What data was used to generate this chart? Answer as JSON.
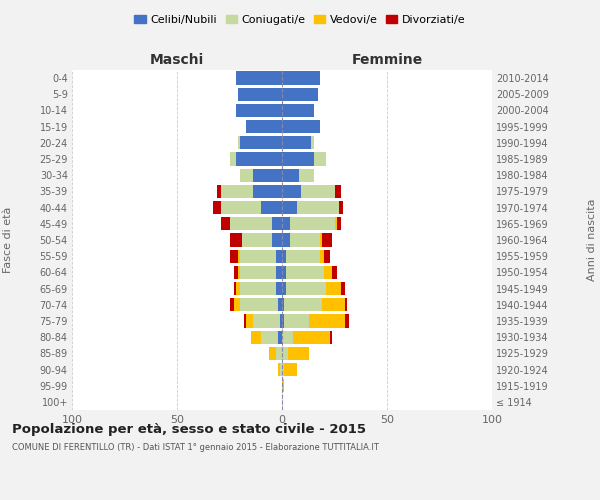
{
  "age_groups": [
    "100+",
    "95-99",
    "90-94",
    "85-89",
    "80-84",
    "75-79",
    "70-74",
    "65-69",
    "60-64",
    "55-59",
    "50-54",
    "45-49",
    "40-44",
    "35-39",
    "30-34",
    "25-29",
    "20-24",
    "15-19",
    "10-14",
    "5-9",
    "0-4"
  ],
  "birth_years": [
    "≤ 1914",
    "1915-1919",
    "1920-1924",
    "1925-1929",
    "1930-1934",
    "1935-1939",
    "1940-1944",
    "1945-1949",
    "1950-1954",
    "1955-1959",
    "1960-1964",
    "1965-1969",
    "1970-1974",
    "1975-1979",
    "1980-1984",
    "1985-1989",
    "1990-1994",
    "1995-1999",
    "2000-2004",
    "2005-2009",
    "2010-2014"
  ],
  "males": {
    "celibi": [
      0,
      0,
      0,
      0,
      2,
      1,
      2,
      3,
      3,
      3,
      5,
      5,
      10,
      14,
      14,
      22,
      20,
      17,
      22,
      21,
      22
    ],
    "coniugati": [
      0,
      0,
      1,
      3,
      8,
      13,
      18,
      17,
      17,
      17,
      14,
      20,
      19,
      15,
      6,
      3,
      1,
      0,
      0,
      0,
      0
    ],
    "vedovi": [
      0,
      0,
      1,
      3,
      5,
      3,
      3,
      2,
      1,
      1,
      0,
      0,
      0,
      0,
      0,
      0,
      0,
      0,
      0,
      0,
      0
    ],
    "divorziati": [
      0,
      0,
      0,
      0,
      0,
      1,
      2,
      1,
      2,
      4,
      6,
      4,
      4,
      2,
      0,
      0,
      0,
      0,
      0,
      0,
      0
    ]
  },
  "females": {
    "nubili": [
      0,
      0,
      0,
      0,
      0,
      1,
      1,
      2,
      2,
      2,
      4,
      4,
      7,
      9,
      8,
      15,
      14,
      18,
      15,
      17,
      18
    ],
    "coniugate": [
      0,
      0,
      1,
      3,
      5,
      12,
      18,
      19,
      18,
      16,
      14,
      21,
      20,
      16,
      7,
      6,
      1,
      0,
      0,
      0,
      0
    ],
    "vedove": [
      0,
      1,
      6,
      10,
      18,
      17,
      11,
      7,
      4,
      2,
      1,
      1,
      0,
      0,
      0,
      0,
      0,
      0,
      0,
      0,
      0
    ],
    "divorziate": [
      0,
      0,
      0,
      0,
      1,
      2,
      1,
      2,
      2,
      3,
      5,
      2,
      2,
      3,
      0,
      0,
      0,
      0,
      0,
      0,
      0
    ]
  },
  "colors": {
    "celibi": "#4472c4",
    "coniugati": "#c5d9a0",
    "vedovi": "#ffc000",
    "divorziati": "#c00000"
  },
  "xlim": 100,
  "title": "Popolazione per età, sesso e stato civile - 2015",
  "subtitle": "COMUNE DI FERENTILLO (TR) - Dati ISTAT 1° gennaio 2015 - Elaborazione TUTTITALIA.IT",
  "ylabel_left": "Fasce di età",
  "ylabel_right": "Anni di nascita",
  "xlabel_left": "Maschi",
  "xlabel_right": "Femmine",
  "legend_labels": [
    "Celibi/Nubili",
    "Coniugati/e",
    "Vedovi/e",
    "Divorziati/e"
  ],
  "bg_color": "#f2f2f2",
  "plot_bg_color": "#ffffff"
}
